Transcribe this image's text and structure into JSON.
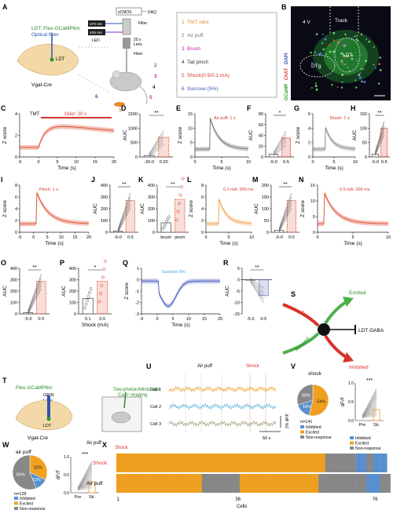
{
  "panel_letters": [
    "A",
    "B",
    "C",
    "D",
    "E",
    "F",
    "G",
    "H",
    "I",
    "J",
    "K",
    "L",
    "M",
    "N",
    "O",
    "P",
    "Q",
    "R",
    "S",
    "T",
    "U",
    "V",
    "W",
    "X"
  ],
  "panel_a": {
    "construct": "LDT: Flex-GCaMP6m",
    "fiber_label": "Optical fiber",
    "region": "LDT",
    "mouse_line": "Vgat-Cre",
    "led_470": "470 nm",
    "led_405": "405 nm",
    "led": "LED",
    "device": "sCMOS",
    "daq": "DAQ",
    "filter": "Filter",
    "lens": "20 x\nLens",
    "fiber": "Fiber",
    "stimuli": [
      {
        "num": "1",
        "label": "TMT odor",
        "color": "#e8892a"
      },
      {
        "num": "2",
        "label": "Air puff",
        "color": "#777777"
      },
      {
        "num": "3",
        "label": "Brush",
        "color": "#c21f9e"
      },
      {
        "num": "4",
        "label": "Tail pinch",
        "color": "#333333"
      },
      {
        "num": "5",
        "label": "Shock(0.5/0.1 mA)",
        "color": "#d6342c"
      },
      {
        "num": "6",
        "label": "Sucrose (5%)",
        "color": "#3a55b0"
      }
    ]
  },
  "panel_b": {
    "track": "Track",
    "v4": "4 V",
    "dapi": "DAPI",
    "chat": "ChAT",
    "gcamp": "GCaMP",
    "ldt": "LDT",
    "dtg": "DTg"
  },
  "c": {
    "stim": "TMT",
    "bar": "Odor: 20 s",
    "xlabel": "Time (s)",
    "ylabel": "Z score",
    "xticks": [
      "-5",
      "0",
      "5",
      "10",
      "15",
      "20"
    ],
    "yticks": [
      "0",
      "2",
      "4"
    ]
  },
  "d": {
    "ylabel": "AUC",
    "xticks": [
      "-20-0",
      "0-20"
    ],
    "yticks": [
      "0",
      "500",
      "1000",
      "1500"
    ],
    "sig": "**",
    "chart_data": {
      "type": "bar",
      "categories": [
        "-20-0",
        "0-20"
      ],
      "values": [
        50,
        680
      ],
      "ylim": [
        0,
        1500
      ]
    }
  },
  "e": {
    "stim": "Air puff: 1 s",
    "xlabel": "Time (s)",
    "ylabel": "Z score",
    "xticks": [
      "0",
      "5",
      "10"
    ],
    "yticks": [
      "0",
      "5",
      "10",
      "15"
    ]
  },
  "f": {
    "ylabel": "AUC",
    "xticks": [
      "-5-0",
      "0-5"
    ],
    "yticks": [
      "0",
      "20",
      "40",
      "60",
      "80"
    ],
    "sig": "*",
    "chart_data": {
      "type": "bar",
      "categories": [
        "-5-0",
        "0-5"
      ],
      "values": [
        5,
        35
      ],
      "ylim": [
        0,
        80
      ]
    }
  },
  "g": {
    "stim": "Brush: 1 s",
    "xlabel": "Time (s)",
    "ylabel": "Z score",
    "xticks": [
      "0",
      "5",
      "10"
    ],
    "yticks": [
      "0",
      "2",
      "4",
      "6"
    ]
  },
  "h": {
    "ylabel": "AUC",
    "xticks": [
      "-5-0",
      "0-5"
    ],
    "yticks": [
      "0",
      "50",
      "100",
      "150"
    ],
    "sig": "**",
    "chart_data": {
      "type": "bar",
      "categories": [
        "-5-0",
        "0-5"
      ],
      "values": [
        10,
        100
      ],
      "ylim": [
        0,
        150
      ]
    }
  },
  "i": {
    "stim": "Pinch: 1 s",
    "xlabel": "Time (s)",
    "ylabel": "Z score",
    "xticks": [
      "-5",
      "0",
      "5",
      "10",
      "15",
      "20"
    ],
    "yticks": [
      "0",
      "2",
      "4",
      "6",
      "8"
    ]
  },
  "j": {
    "ylabel": "AUC",
    "xticks": [
      "-5-0",
      "0-5"
    ],
    "yticks": [
      "0",
      "100",
      "200",
      "300",
      "400"
    ],
    "sig": "**",
    "chart_data": {
      "type": "bar",
      "categories": [
        "-5-0",
        "0-5"
      ],
      "values": [
        10,
        270
      ],
      "ylim": [
        0,
        400
      ]
    }
  },
  "k": {
    "ylabel": "AUC",
    "xticks": [
      "brush",
      "pinch"
    ],
    "yticks": [
      "0",
      "100",
      "200",
      "300",
      "400"
    ],
    "sig": "**",
    "chart_data": {
      "type": "bar",
      "categories": [
        "brush",
        "pinch"
      ],
      "values": [
        80,
        280
      ],
      "ylim": [
        0,
        400
      ]
    }
  },
  "l": {
    "stim": "0.1 mA: 200 ms",
    "xlabel": "Time (s)",
    "ylabel": "Z score",
    "xticks": [
      "0",
      "5",
      "10"
    ],
    "yticks": [
      "0",
      "2",
      "4",
      "6",
      "8"
    ]
  },
  "m": {
    "ylabel": "AUC",
    "xticks": [
      "-5-0",
      "0-5"
    ],
    "yticks": [
      "0",
      "50",
      "100",
      "150",
      "200"
    ],
    "sig": "**",
    "chart_data": {
      "type": "bar",
      "categories": [
        "-5-0",
        "0-5"
      ],
      "values": [
        8,
        135
      ],
      "ylim": [
        0,
        200
      ]
    }
  },
  "n": {
    "stim": "0.5 mA: 200 ms",
    "xlabel": "Time (s)",
    "ylabel": "Z score",
    "xticks": [
      "0",
      "5",
      "10"
    ],
    "yticks": [
      "0",
      "5",
      "10",
      "15"
    ]
  },
  "o": {
    "ylabel": "AUC",
    "xticks": [
      "-5-0",
      "0-5"
    ],
    "yticks": [
      "0",
      "100",
      "200",
      "300",
      "400"
    ],
    "sig": "**",
    "chart_data": {
      "type": "bar",
      "categories": [
        "-5-0",
        "0-5"
      ],
      "values": [
        10,
        285
      ],
      "ylim": [
        0,
        400
      ]
    }
  },
  "p": {
    "ylabel": "AUC",
    "xlabel": "Shock (mA)",
    "xticks": [
      "0.1",
      "0.5"
    ],
    "yticks": [
      "0",
      "100",
      "200",
      "300",
      "400"
    ],
    "sig": "*",
    "chart_data": {
      "type": "bar",
      "categories": [
        "0.1",
        "0.5"
      ],
      "values": [
        135,
        285
      ],
      "ylim": [
        0,
        400
      ]
    }
  },
  "q": {
    "stim": "Sucrose 5%",
    "xlabel": "Time (s)",
    "ylabel": "Z score",
    "xticks": [
      "-5",
      "0",
      "5",
      "10",
      "15",
      "20"
    ],
    "yticks": [
      "-3",
      "-2",
      "-1",
      "0",
      "1"
    ]
  },
  "r": {
    "ylabel": "AUC",
    "xticks": [
      "-5-0",
      "0-5"
    ],
    "yticks": [
      "-15",
      "-10",
      "-5",
      "0",
      "5"
    ],
    "sig": "**",
    "chart_data": {
      "type": "bar",
      "categories": [
        "-5-0",
        "0-5"
      ],
      "values": [
        0,
        -7
      ],
      "ylim": [
        -15,
        5
      ]
    }
  },
  "s": {
    "excited": "Excited",
    "inhibited": "Inhibited",
    "aversion": "Aversion",
    "reward": "Reward",
    "gaba": "LDT GABA"
  },
  "t": {
    "construct": "Flex-GCaMP6m",
    "grin": "GRIN",
    "lens": "Lens",
    "ldt": "LDT",
    "line": "Vgat-Cre",
    "imaging": "Two-photon/Miniscope\nCa2+ imaging",
    "air": "Air puff",
    "shock": "Shock"
  },
  "u": {
    "air": "Air puff",
    "shock": "Shock",
    "cells": [
      "Cell 1",
      "Cell 2",
      "Cell 3"
    ],
    "scale_y": "2% dF/F",
    "scale_x": "50 s"
  },
  "v": {
    "title": "shock",
    "n": "n=141",
    "slices": [
      "54%",
      "16%",
      "30%"
    ],
    "legend": [
      "Inhibited",
      "Excited",
      "Non-response"
    ],
    "ylabel": "dF/F",
    "xticks": [
      "Pre",
      "Sti."
    ],
    "yticks": [
      "0.0",
      "0.5",
      "1.0"
    ],
    "sig": "***",
    "chart_data": {
      "type": "pie",
      "categories": [
        "Excited",
        "Inhibited",
        "Non-response"
      ],
      "values": [
        54,
        16,
        30
      ]
    }
  },
  "w": {
    "title": "air puff",
    "n": "n=128",
    "slices": [
      "32%",
      "12%",
      "56%"
    ],
    "legend": [
      "Inhibited",
      "Excited",
      "Non-response"
    ],
    "ylabel": "dF/F",
    "xticks": [
      "Pre",
      "Sti."
    ],
    "yticks": [
      "0.0",
      "0.5",
      "1.0"
    ],
    "sig": "***",
    "chart_data": {
      "type": "pie",
      "categories": [
        "Excited",
        "Inhibited",
        "Non-response"
      ],
      "values": [
        32,
        12,
        56
      ]
    }
  },
  "x": {
    "rows": [
      "Shock",
      "Air puff"
    ],
    "xlabel": "Cells",
    "xticks": [
      "1",
      "36",
      "76"
    ],
    "legend": [
      "Inhibited",
      "Excited",
      "Non-response"
    ],
    "chart_data": {
      "type": "heatmap",
      "rows": [
        "Shock",
        "Air puff"
      ],
      "shock": "EEEEEEEEEEEEEEEEEEEEEEEEEEEEEEEEEEEEEEEEEEEEEEEEEEEEEEEEEEEEENNNNNNNNNIIINNIIII",
      "airpuff": "EEEEEEEEEEEEEEEEEEEEEEEEENNNNNNNNNNNEEEEEEEEEEEEEEEEEEEEEEENNNNNNNNNNNNNNIIIINNN"
    }
  }
}
